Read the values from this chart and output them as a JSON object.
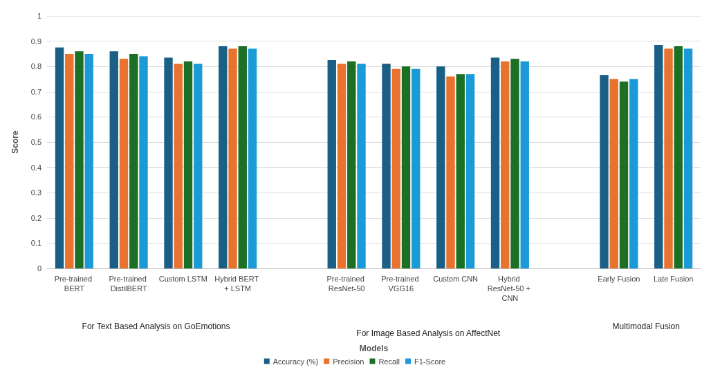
{
  "chart_data": {
    "type": "bar",
    "xlabel": "Models",
    "ylabel": "Score",
    "categories": [
      "Pre-trained BERT",
      "Pre-trained DistilBERT",
      "Custom LSTM",
      "Hybrid BERT + LSTM",
      null,
      "Pre-trained ResNet-50",
      "Pre-trained VGG16",
      "Custom CNN",
      "Hybrid ResNet-50 + CNN",
      null,
      "Early Fusion",
      "Late Fusion"
    ],
    "series": [
      {
        "name": "Accuracy (%)",
        "color": "#1a5f86",
        "values": [
          0.875,
          0.86,
          0.835,
          0.88,
          null,
          0.825,
          0.81,
          0.8,
          0.835,
          null,
          0.765,
          0.885
        ]
      },
      {
        "name": "Precision",
        "color": "#e8732e",
        "values": [
          0.85,
          0.83,
          0.81,
          0.87,
          null,
          0.81,
          0.79,
          0.76,
          0.82,
          null,
          0.75,
          0.87
        ]
      },
      {
        "name": "Recall",
        "color": "#1b7026",
        "values": [
          0.86,
          0.85,
          0.82,
          0.88,
          null,
          0.82,
          0.8,
          0.77,
          0.83,
          null,
          0.74,
          0.88
        ]
      },
      {
        "name": "F1-Score",
        "color": "#1a9bd7",
        "values": [
          0.85,
          0.84,
          0.81,
          0.87,
          null,
          0.81,
          0.79,
          0.77,
          0.82,
          null,
          0.75,
          0.87
        ]
      }
    ],
    "ylim": [
      0,
      1
    ],
    "yticks": [
      0,
      0.1,
      0.2,
      0.3,
      0.4,
      0.5,
      0.6,
      0.7,
      0.8,
      0.9,
      1
    ],
    "grid": "y",
    "legend": "bottom",
    "annotations": [
      "For Text Based Analysis on GoEmotions",
      "For Image Based Analysis on AffectNet",
      "Multimodal Fusion"
    ]
  }
}
